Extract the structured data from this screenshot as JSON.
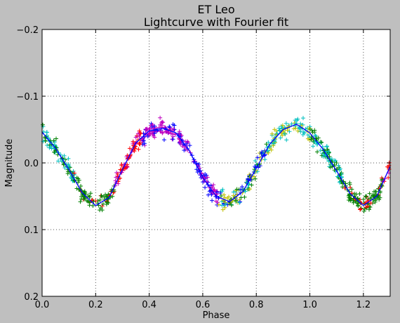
{
  "chart_data": {
    "type": "scatter",
    "title": "ET Leo",
    "subtitle": "Lightcurve with Fourier fit",
    "xlabel": "Phase",
    "ylabel": "Magnitude",
    "xlim": [
      0.0,
      1.3
    ],
    "ylim": [
      -0.2,
      0.2
    ],
    "y_inverted": true,
    "grid": true,
    "grid_style": "dotted",
    "x_ticks": [
      0.0,
      0.2,
      0.4,
      0.6,
      0.8,
      1.0,
      1.2
    ],
    "x_tick_labels": [
      "0.0",
      "0.2",
      "0.4",
      "0.6",
      "0.8",
      "1.0",
      "1.2"
    ],
    "y_ticks": [
      -0.2,
      -0.1,
      0.0,
      0.1,
      0.2
    ],
    "y_tick_labels": [
      "−0.2",
      "−0.1",
      "0.0",
      "0.1",
      "0.2"
    ],
    "marker": "+",
    "point_colors": [
      "#00bfbf",
      "#008000",
      "#ff0000",
      "#bf00bf",
      "#0000ff",
      "#bfbf00"
    ],
    "fit_color": "#0000ff",
    "fit_curve": {
      "x": [
        0.0,
        0.05,
        0.1,
        0.15,
        0.2,
        0.25,
        0.3,
        0.35,
        0.4,
        0.45,
        0.5,
        0.55,
        0.6,
        0.65,
        0.7,
        0.75,
        0.8,
        0.85,
        0.9,
        0.95,
        1.0,
        1.05,
        1.1,
        1.15,
        1.2,
        1.25,
        1.3
      ],
      "y": [
        -0.046,
        -0.022,
        0.01,
        0.045,
        0.064,
        0.052,
        0.01,
        -0.03,
        -0.048,
        -0.052,
        -0.045,
        -0.018,
        0.022,
        0.05,
        0.058,
        0.043,
        0.008,
        -0.028,
        -0.05,
        -0.058,
        -0.045,
        -0.02,
        0.012,
        0.046,
        0.064,
        0.05,
        0.005
      ]
    }
  }
}
